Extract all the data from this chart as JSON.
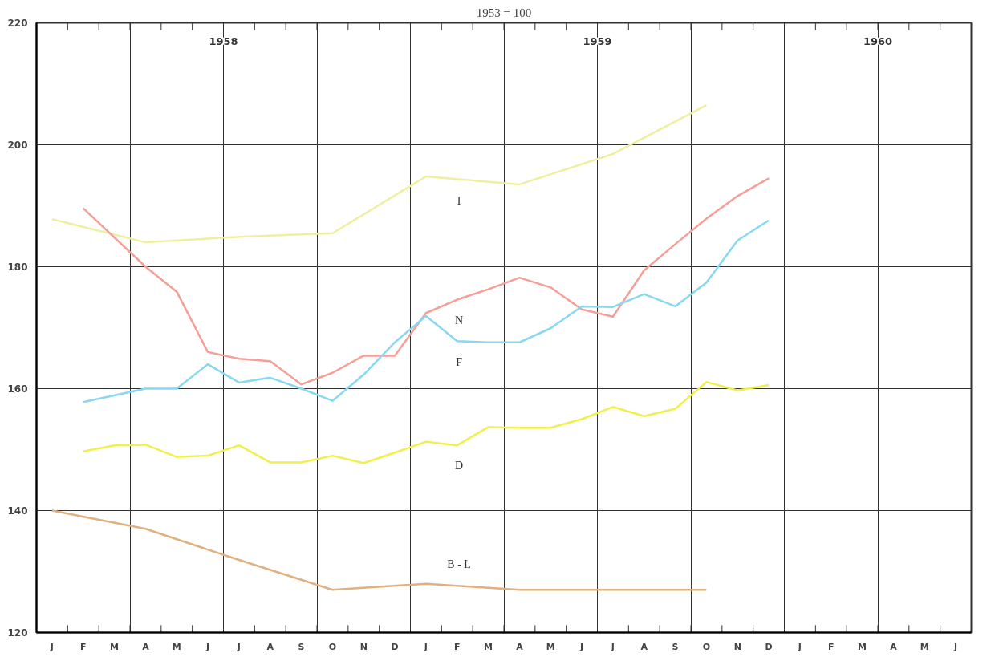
{
  "chart_data": {
    "type": "line",
    "title": "1953 = 100",
    "categories": [
      "J",
      "F",
      "M",
      "A",
      "M",
      "J",
      "J",
      "A",
      "S",
      "O",
      "N",
      "D",
      "J",
      "F",
      "M",
      "A",
      "M",
      "J",
      "J",
      "A",
      "S",
      "O",
      "N",
      "D",
      "J",
      "F",
      "M",
      "A",
      "M",
      "J"
    ],
    "ylim": [
      120,
      220
    ],
    "yticks": [
      120,
      140,
      160,
      180,
      200,
      220
    ],
    "grid": true,
    "annotations": [
      "1958",
      "1959",
      "1960"
    ],
    "series": [
      {
        "name": "I",
        "color": "#eef0a0",
        "values": [
          187.8,
          null,
          null,
          184,
          null,
          null,
          184.9,
          null,
          null,
          185.5,
          null,
          null,
          194.8,
          null,
          null,
          193.5,
          null,
          null,
          198.5,
          null,
          null,
          206.5,
          null,
          null,
          null,
          null,
          null,
          null,
          null,
          null
        ]
      },
      {
        "name": "N",
        "color": "#f4a098",
        "values": [
          null,
          189.6,
          null,
          180,
          175.9,
          166,
          164.9,
          164.5,
          160.7,
          162.6,
          165.4,
          165.4,
          172.4,
          174.6,
          176.3,
          178.2,
          176.6,
          173,
          171.8,
          179.4,
          183.7,
          187.9,
          191.6,
          194.5,
          null,
          null,
          null,
          null,
          null,
          null
        ]
      },
      {
        "name": "F",
        "color": "#88d8f0",
        "values": [
          null,
          157.8,
          null,
          160,
          160,
          164,
          161,
          161.8,
          160,
          158,
          162.3,
          167.6,
          171.9,
          167.8,
          167.6,
          167.6,
          169.9,
          173.5,
          173.4,
          175.5,
          173.5,
          177.4,
          184.3,
          187.6,
          null,
          null,
          null,
          null,
          null,
          null
        ]
      },
      {
        "name": "D",
        "color": "#f0f048",
        "values": [
          null,
          149.7,
          150.7,
          150.8,
          148.8,
          149,
          150.7,
          147.9,
          147.9,
          149,
          147.8,
          149.5,
          151.3,
          150.7,
          153.7,
          153.6,
          153.6,
          155,
          157,
          155.5,
          156.7,
          161.1,
          159.7,
          160.6,
          null,
          null,
          null,
          null,
          null,
          null
        ]
      },
      {
        "name": "B - L",
        "color": "#e0b080",
        "values": [
          140,
          null,
          null,
          137,
          null,
          null,
          131.9,
          null,
          null,
          127,
          null,
          null,
          128,
          null,
          null,
          127,
          null,
          null,
          127,
          null,
          null,
          127,
          null,
          null,
          null,
          null,
          null,
          null,
          null,
          null
        ]
      }
    ]
  }
}
